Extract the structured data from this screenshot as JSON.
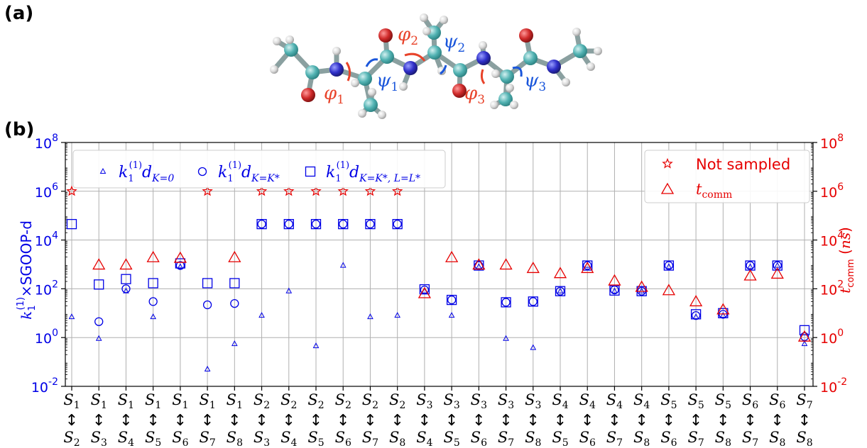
{
  "panel_labels": {
    "a": "(a)",
    "b": "(b)"
  },
  "molecule": {
    "dihedrals": [
      {
        "name": "φ",
        "sub": "1",
        "color": "#e8432a"
      },
      {
        "name": "ψ",
        "sub": "1",
        "color": "#1a56db"
      },
      {
        "name": "φ",
        "sub": "2",
        "color": "#e8432a"
      },
      {
        "name": "ψ",
        "sub": "2",
        "color": "#1a56db"
      },
      {
        "name": "φ",
        "sub": "3",
        "color": "#e8432a"
      },
      {
        "name": "ψ",
        "sub": "3",
        "color": "#1a56db"
      }
    ]
  },
  "chart_data": {
    "type": "scatter",
    "y_scale": "log",
    "ylim": [
      0.01,
      100000000
    ],
    "ylabel_left": "k₁⁽¹⁾×SGOOP-d",
    "ylabel_right": "t_comm (ns)",
    "yticks": [
      {
        "value": 0.01,
        "base": "10",
        "exp": "-2"
      },
      {
        "value": 1,
        "base": "10",
        "exp": "0"
      },
      {
        "value": 100,
        "base": "10",
        "exp": "2"
      },
      {
        "value": 10000,
        "base": "10",
        "exp": "4"
      },
      {
        "value": 1000000,
        "base": "10",
        "exp": "6"
      },
      {
        "value": 100000000,
        "base": "10",
        "exp": "8"
      }
    ],
    "categories": [
      {
        "from": "1",
        "to": "2"
      },
      {
        "from": "1",
        "to": "3"
      },
      {
        "from": "1",
        "to": "4"
      },
      {
        "from": "1",
        "to": "5"
      },
      {
        "from": "1",
        "to": "6"
      },
      {
        "from": "1",
        "to": "7"
      },
      {
        "from": "1",
        "to": "8"
      },
      {
        "from": "2",
        "to": "3"
      },
      {
        "from": "2",
        "to": "4"
      },
      {
        "from": "2",
        "to": "5"
      },
      {
        "from": "2",
        "to": "6"
      },
      {
        "from": "2",
        "to": "7"
      },
      {
        "from": "2",
        "to": "8"
      },
      {
        "from": "3",
        "to": "4"
      },
      {
        "from": "3",
        "to": "5"
      },
      {
        "from": "3",
        "to": "6"
      },
      {
        "from": "3",
        "to": "7"
      },
      {
        "from": "3",
        "to": "8"
      },
      {
        "from": "4",
        "to": "5"
      },
      {
        "from": "4",
        "to": "6"
      },
      {
        "from": "4",
        "to": "7"
      },
      {
        "from": "4",
        "to": "8"
      },
      {
        "from": "5",
        "to": "6"
      },
      {
        "from": "5",
        "to": "7"
      },
      {
        "from": "5",
        "to": "8"
      },
      {
        "from": "6",
        "to": "7"
      },
      {
        "from": "6",
        "to": "8"
      },
      {
        "from": "7",
        "to": "8"
      }
    ],
    "series": [
      {
        "name": "k₁⁽¹⁾d_{K=0}",
        "marker": "triangle-small",
        "color": "#0000e6",
        "axis": "left",
        "values": [
          7,
          0.9,
          80,
          7,
          800,
          0.05,
          0.55,
          8,
          80,
          0.45,
          900,
          7,
          8,
          80,
          8,
          800,
          0.9,
          0.38,
          80,
          900,
          80,
          80,
          800,
          7,
          8,
          800,
          900,
          0.55
        ]
      },
      {
        "name": "k₁⁽¹⁾d_{K=K*}",
        "marker": "circle",
        "color": "#0000e6",
        "axis": "left",
        "values": [
          null,
          4.5,
          100,
          30,
          900,
          22,
          25,
          45000,
          45000,
          45000,
          45000,
          45000,
          45000,
          90,
          35,
          900,
          28,
          30,
          80,
          900,
          90,
          80,
          900,
          8,
          9,
          900,
          900,
          1.1
        ]
      },
      {
        "name": "k₁⁽¹⁾d_{K=K*,L=L*}",
        "marker": "square",
        "color": "#0000e6",
        "axis": "left",
        "values": [
          45000,
          150,
          250,
          170,
          1100,
          170,
          170,
          45000,
          45000,
          45000,
          45000,
          45000,
          45000,
          95,
          35,
          900,
          28,
          30,
          80,
          900,
          85,
          80,
          900,
          9,
          10,
          900,
          900,
          2
        ]
      },
      {
        "name": "Not sampled",
        "marker": "star",
        "color": "#e60000",
        "axis": "right",
        "values": [
          1000000,
          null,
          null,
          null,
          null,
          1000000,
          null,
          1000000,
          1000000,
          1000000,
          1000000,
          1000000,
          1000000,
          null,
          null,
          null,
          null,
          null,
          null,
          null,
          null,
          null,
          null,
          null,
          null,
          null,
          null,
          null
        ]
      },
      {
        "name": "t_comm",
        "marker": "triangle",
        "color": "#e60000",
        "axis": "right",
        "values": [
          null,
          900,
          900,
          1800,
          1700,
          null,
          1800,
          null,
          null,
          null,
          null,
          null,
          null,
          60,
          1800,
          900,
          900,
          650,
          400,
          650,
          200,
          110,
          80,
          28,
          13,
          320,
          380,
          1
        ]
      }
    ],
    "legend_left": {
      "placement": "top-left",
      "entries": [
        {
          "k": "k",
          "sub1": "1",
          "sup": "(1)",
          "d": "d",
          "sub": "K=0"
        },
        {
          "k": "k",
          "sub1": "1",
          "sup": "(1)",
          "d": "d",
          "sub": "K=K*"
        },
        {
          "k": "k",
          "sub1": "1",
          "sup": "(1)",
          "d": "d",
          "sub": "K=K*, L=L*"
        }
      ]
    },
    "legend_right": {
      "placement": "top-right",
      "entries": [
        {
          "label": "Not sampled"
        },
        {
          "label": "t",
          "sub": "comm"
        }
      ]
    },
    "grid": true
  }
}
